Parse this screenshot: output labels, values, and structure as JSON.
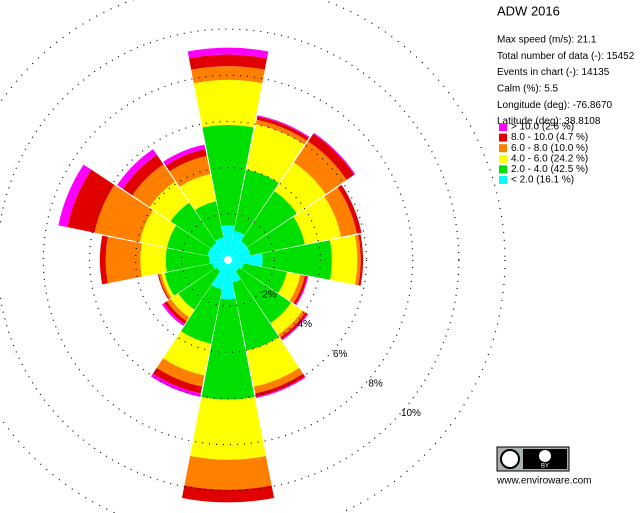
{
  "chart_data": {
    "type": "windrose",
    "title": "ADW 2016",
    "info": [
      "Max speed (m/s): 21.1",
      "Total number of data (-): 15452",
      "Events in chart (-): 14135",
      "Calm (%): 5.5",
      "Longitude (deg): -76.8670",
      "Latitude  (deg): 38.8108"
    ],
    "ylim": [
      0,
      12
    ],
    "yticks": [
      {
        "value": 2,
        "label": "2%"
      },
      {
        "value": 4,
        "label": "4%"
      },
      {
        "value": 6,
        "label": "6%"
      },
      {
        "value": 8,
        "label": "8%"
      },
      {
        "value": 10,
        "label": "10%"
      }
    ],
    "series": [
      {
        "name": "> 10.0 (2.6 %)",
        "color": "#ff00ff",
        "values": [
          0.3,
          0.05,
          0.05,
          0,
          0,
          0.05,
          0.05,
          0.05,
          0,
          0.15,
          0.1,
          0,
          0,
          0.4,
          0.3,
          0.2
        ]
      },
      {
        "name": "8.0 - 10.0 (4.7 %)",
        "color": "#e00000",
        "values": [
          0.5,
          0.15,
          0.4,
          0.2,
          0.1,
          0.1,
          0.1,
          0.15,
          0.55,
          0.3,
          0.15,
          0.05,
          0.25,
          1.2,
          0.5,
          0.3
        ]
      },
      {
        "name": "6.0 - 8.0 (10.0 %)",
        "color": "#ff8000",
        "values": [
          0.6,
          0.2,
          1.1,
          0.7,
          0.15,
          0.2,
          0.15,
          0.3,
          1.3,
          0.5,
          0.2,
          0.1,
          1.5,
          2.0,
          0.9,
          0.8
        ]
      },
      {
        "name": "4.0 - 6.0 (24.2 %)",
        "color": "#ffff00",
        "values": [
          1.95,
          2.0,
          1.5,
          1.6,
          1.1,
          0.6,
          0.6,
          1.6,
          2.6,
          1.4,
          0.4,
          0.15,
          1.1,
          1.2,
          1.1,
          1.2
        ]
      },
      {
        "name": "2.0 - 4.0 (42.5 %)",
        "color": "#00e000",
        "values": [
          4.35,
          2.7,
          2.6,
          2.4,
          3.0,
          1.9,
          2.7,
          3.0,
          4.35,
          2.4,
          2.0,
          2.1,
          1.9,
          1.8,
          2.1,
          1.6
        ]
      },
      {
        "name": "< 2.0 (16.1 %)",
        "color": "#00ffff",
        "values": [
          1.5,
          1.3,
          1.0,
          1.0,
          1.5,
          0.7,
          0.6,
          1.0,
          1.7,
          1.3,
          0.6,
          0.7,
          0.8,
          0.9,
          0.9,
          1.0
        ]
      }
    ],
    "credit": {
      "badge": "BY",
      "url": "www.enviroware.com"
    }
  }
}
